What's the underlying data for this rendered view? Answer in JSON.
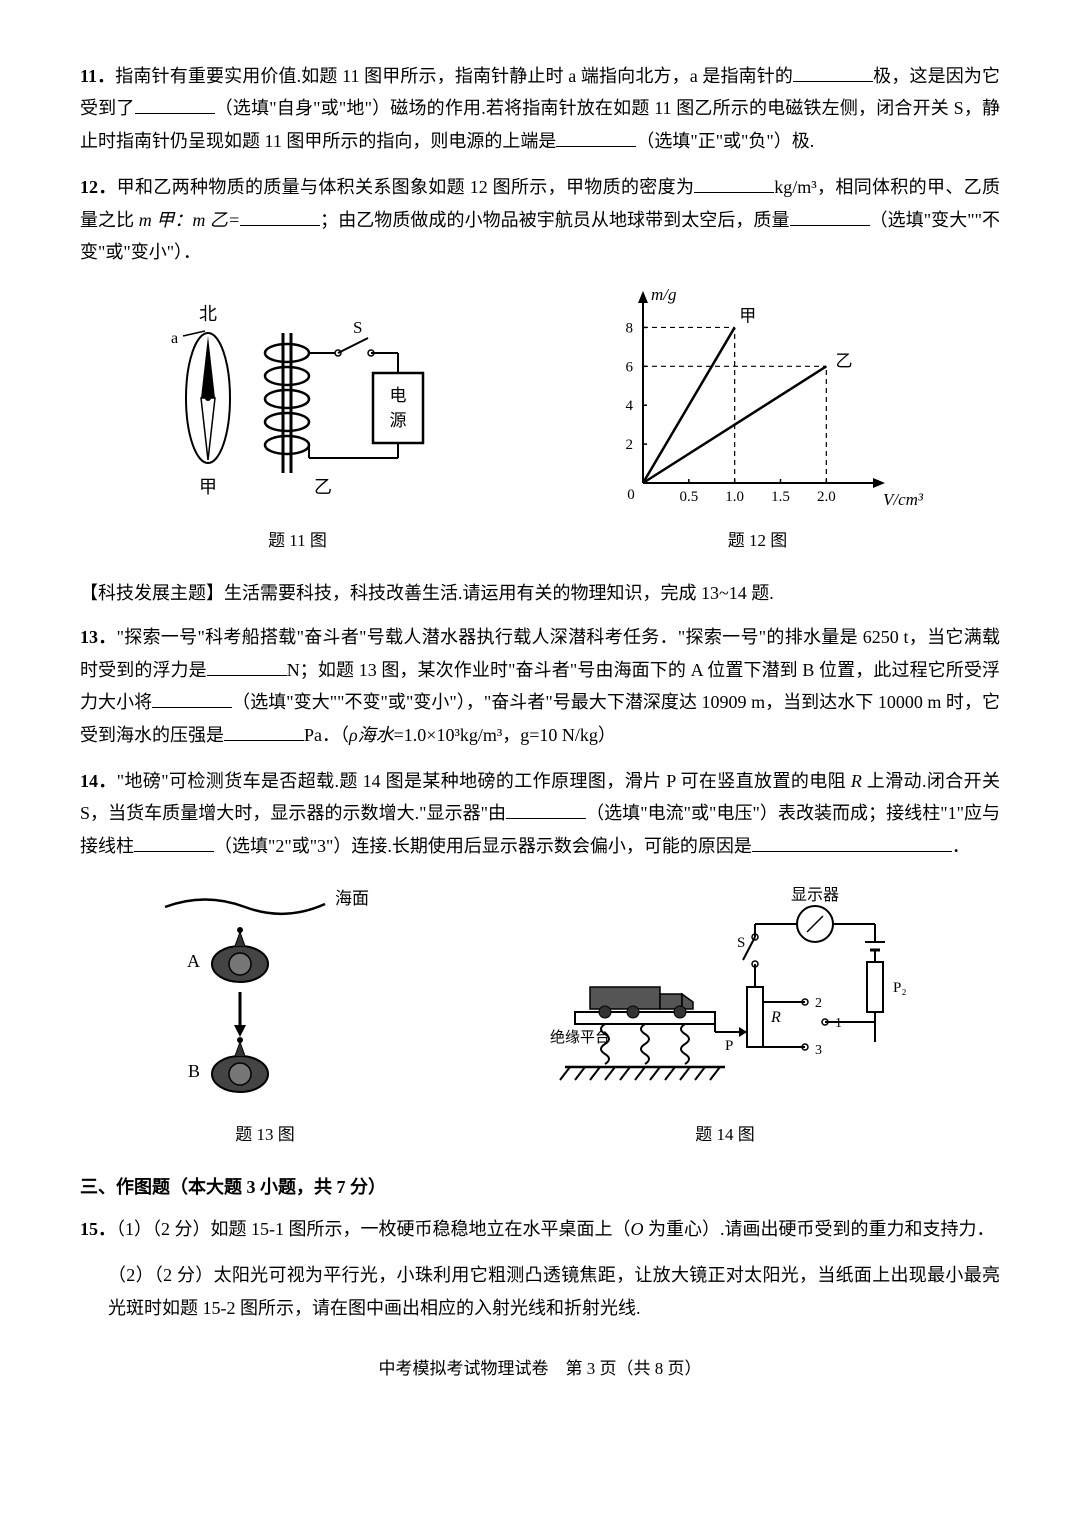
{
  "q11": {
    "num": "11．",
    "text_1": "指南针有重要实用价值.如题 11 图甲所示，指南针静止时 a 端指向北方，a 是指南针的",
    "text_2": "极，这是因为它受到了",
    "text_3": "（选填\"自身\"或\"地\"）磁场的作用.若将指南针放在如题 11 图乙所示的电磁铁左侧，闭合开关 S，静止时指南针仍呈现如题 11 图甲所示的指向，则电源的上端是",
    "text_4": "（选填\"正\"或\"负\"）极.",
    "fig": {
      "bei": "北",
      "a_label": "a",
      "jia": "甲",
      "yi": "乙",
      "s_label": "S",
      "power": "电\n源",
      "caption": "题 11 图",
      "colors": {
        "stroke": "#000000",
        "fill_black": "#000000",
        "fill_white": "#ffffff"
      }
    }
  },
  "q12": {
    "num": "12．",
    "text_1": "甲和乙两种物质的质量与体积关系图象如题 12 图所示，甲物质的密度为",
    "unit_1": "kg/m³，",
    "text_2": "相同体积的甲、乙质量之比",
    "ratio": " m 甲：m 乙=",
    "text_3": "；由乙物质做成的小物品被宇航员从地球带到太空后，质量",
    "text_4": "（选填\"变大\"\"不变\"或\"变小\"）．",
    "chart": {
      "type": "line",
      "caption": "题 12 图",
      "y_label": "m/g",
      "x_label": "V/cm³",
      "x_ticks": [
        "0",
        "0.5",
        "1.0",
        "1.5",
        "2.0"
      ],
      "y_ticks": [
        "2",
        "4",
        "6",
        "8"
      ],
      "series": [
        {
          "name": "甲",
          "points": [
            [
              0,
              0
            ],
            [
              1.0,
              8
            ]
          ],
          "label_pos": [
            1.05,
            8.3
          ]
        },
        {
          "name": "乙",
          "points": [
            [
              0,
              0
            ],
            [
              2.0,
              6
            ]
          ],
          "label_pos": [
            2.1,
            6.0
          ]
        }
      ],
      "grid_color": "#000000",
      "axis_color": "#000000",
      "line_color": "#000000",
      "xlim": [
        0,
        2.4
      ],
      "ylim": [
        0,
        9
      ]
    }
  },
  "sectionNote": "【科技发展主题】生活需要科技，科技改善生活.请运用有关的物理知识，完成 13~14 题.",
  "q13": {
    "num": "13．",
    "text_1": "\"探索一号\"科考船搭载\"奋斗者\"号载人潜水器执行载人深潜科考任务．\"探索一号\"的排水量是 6250 t，当它满载时受到的浮力是",
    "text_2": "N；如题 13 图，某次作业时\"奋斗者\"号由海面下的 A 位置下潜到 B 位置，此过程它所受浮力大小将",
    "text_3": "（选填\"变大\"\"不变\"或\"变小\"），\"奋斗者\"号最大下潜深度达 10909 m，当到达水下 10000 m 时，它受到海水的压强是",
    "text_4": "Pa．（",
    "rho": "ρ海水",
    "text_5": "=1.0×10³kg/m³，g=10 N/kg）",
    "fig": {
      "sea_label": "海面",
      "a_label": "A",
      "b_label": "B",
      "caption": "题 13 图"
    }
  },
  "q14": {
    "num": "14．",
    "text_1": "\"地磅\"可检测货车是否超载.题 14 图是某种地磅的工作原理图，滑片 P 可在竖直放置的电阻 ",
    "r_italic": "R",
    "text_1b": " 上滑动.闭合开关 S，当货车质量增大时，显示器的示数增大.\"显示器\"由",
    "text_2": "（选填\"电流\"或\"电压\"）表改装而成；接线柱\"1\"应与接线柱",
    "text_3": "（选填\"2\"或\"3\"）连接.长期使用后显示器示数会偏小，可能的原因是",
    "text_4": "．",
    "fig": {
      "display": "显示器",
      "platform": "绝缘平台",
      "s_label": "S",
      "r_label": "R",
      "p_label": "P",
      "p2_label": "P₂",
      "t1": "1",
      "t2": "2",
      "t3": "3",
      "caption": "题 14 图"
    }
  },
  "section3": "三、作图题（本大题 3 小题，共 7 分）",
  "q15": {
    "num": "15．",
    "p1_a": "（1）（2 分）如题 15-1 图所示，一枚硬币稳稳地立在水平桌面上（",
    "o_italic": "O",
    "p1_b": " 为重心）.请画出硬币受到的重力和支持力．",
    "p2": "（2）（2 分）太阳光可视为平行光，小珠利用它粗测凸透镜焦距，让放大镜正对太阳光，当纸面上出现最小最亮光斑时如题 15-2 图所示，请在图中画出相应的入射光线和折射光线."
  },
  "footer": "中考模拟考试物理试卷　第 3 页（共 8 页）"
}
